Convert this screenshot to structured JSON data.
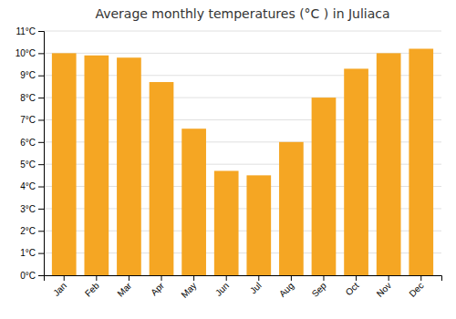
{
  "chart_data": {
    "type": "bar",
    "title": "Average monthly temperatures (°C ) in Juliaca",
    "categories": [
      "Jan",
      "Feb",
      "Mar",
      "Apr",
      "May",
      "Jun",
      "Jul",
      "Aug",
      "Sep",
      "Oct",
      "Nov",
      "Dec"
    ],
    "values": [
      10.0,
      9.9,
      9.8,
      8.7,
      6.6,
      4.7,
      4.5,
      6.0,
      8.0,
      9.3,
      10.0,
      10.2
    ],
    "color": "#F5A623",
    "ylim": [
      0,
      11
    ],
    "yticks": [
      {
        "value": 0,
        "label": "0°C"
      },
      {
        "value": 1,
        "label": "1°C"
      },
      {
        "value": 2,
        "label": "2°C"
      },
      {
        "value": 3,
        "label": "3°C"
      },
      {
        "value": 4,
        "label": "4°C"
      },
      {
        "value": 5,
        "label": "5°C"
      },
      {
        "value": 6,
        "label": "6°C"
      },
      {
        "value": 7,
        "label": "7°C"
      },
      {
        "value": 8,
        "label": "8°C"
      },
      {
        "value": 9,
        "label": "9°C"
      },
      {
        "value": 10,
        "label": "10°C"
      },
      {
        "value": 11,
        "label": "11°C"
      }
    ],
    "grid": true
  }
}
